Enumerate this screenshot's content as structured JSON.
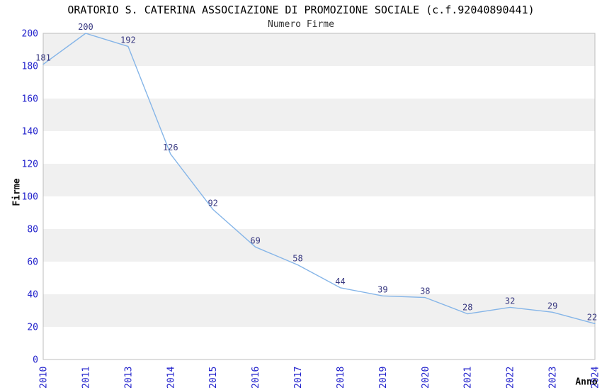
{
  "chart_data": {
    "type": "line",
    "title": "ORATORIO S. CATERINA ASSOCIAZIONE DI PROMOZIONE SOCIALE (c.f.92040890441)",
    "subtitle": "Numero Firme",
    "xlabel": "Anno",
    "ylabel": "Firme",
    "categories": [
      "2010",
      "2011",
      "2013",
      "2014",
      "2015",
      "2016",
      "2017",
      "2018",
      "2019",
      "2020",
      "2021",
      "2022",
      "2023",
      "2024"
    ],
    "values": [
      181,
      200,
      192,
      126,
      92,
      69,
      58,
      44,
      39,
      38,
      28,
      32,
      29,
      22
    ],
    "yticks": [
      0,
      20,
      40,
      60,
      80,
      100,
      120,
      140,
      160,
      180,
      200
    ],
    "ylim": [
      0,
      200
    ],
    "data_labels": [
      "181",
      "200",
      "192",
      "126",
      "92",
      "69",
      "58",
      "44",
      "39",
      "38",
      "28",
      "32",
      "29",
      "22"
    ],
    "grid": "alternating-horizontal-bands",
    "legend": "none",
    "colors": {
      "line": "#85b5e8",
      "data_label": "#383880",
      "tick_label": "#2222cc",
      "band": "#f0f0f0",
      "plot_border": "#bdbdbd",
      "title_text": "#000000",
      "axis_title_text": "#111111"
    }
  }
}
